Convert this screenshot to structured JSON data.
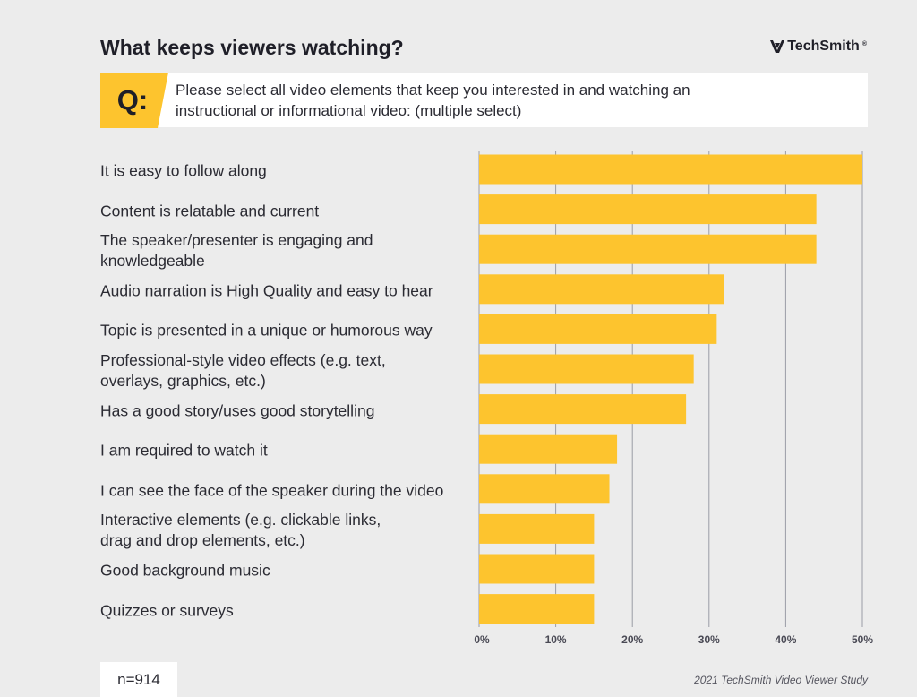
{
  "header": {
    "title": "What keeps viewers watching?",
    "brand": "TechSmith",
    "brand_mark": "®"
  },
  "question": {
    "badge": "Q:",
    "text": "Please select all video elements that keep you interested in and watching an\ninstructional or informational video: (multiple select)"
  },
  "colors": {
    "bar": "#fdc42e",
    "grid": "#9a9ca6",
    "accent": "#fdc42e",
    "background": "#ececec"
  },
  "footer": {
    "sample_size": "n=914",
    "source": "2021 TechSmith Video Viewer Study"
  },
  "chart_data": {
    "type": "bar",
    "orientation": "horizontal",
    "categories": [
      "It is easy to follow along",
      "Content is relatable and current",
      "The speaker/presenter is engaging and\nknowledgeable",
      "Audio narration is High Quality and easy to hear",
      "Topic is presented in a unique or humorous way",
      "Professional-style video effects (e.g. text,\noverlays, graphics, etc.)",
      "Has a good story/uses good storytelling",
      "I am required to watch it",
      "I can see the face of the speaker during the video",
      "Interactive elements (e.g. clickable links,\ndrag and drop elements, etc.)",
      "Good background music",
      "Quizzes or surveys"
    ],
    "values": [
      50,
      44,
      44,
      32,
      31,
      28,
      27,
      18,
      17,
      15,
      15,
      15
    ],
    "xlim": [
      0,
      50
    ],
    "xticks": [
      "0%",
      "10%",
      "20%",
      "30%",
      "40%",
      "50%"
    ],
    "grid": true,
    "title": "",
    "xlabel": "",
    "ylabel": ""
  }
}
